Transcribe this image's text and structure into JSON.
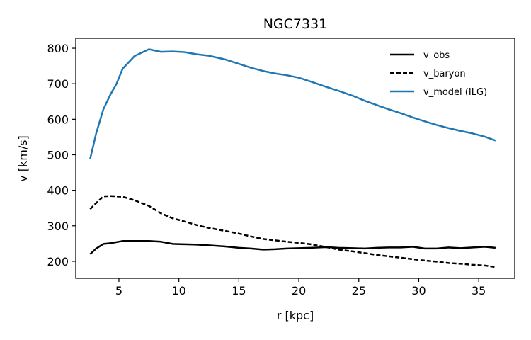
{
  "chart_data": {
    "type": "line",
    "title": "NGC7331",
    "xlabel": "r [kpc]",
    "ylabel": "v [km/s]",
    "xlim": [
      1.4,
      38.0
    ],
    "ylim": [
      152,
      828
    ],
    "xticks": [
      5,
      10,
      15,
      20,
      25,
      30,
      35
    ],
    "yticks": [
      200,
      300,
      400,
      500,
      600,
      700,
      800
    ],
    "grid": false,
    "legend_position": "top-right",
    "series": [
      {
        "name": "v_obs",
        "color": "#000000",
        "style": "solid",
        "points": [
          [
            2.6,
            220
          ],
          [
            3.1,
            236
          ],
          [
            3.7,
            249
          ],
          [
            4.3,
            251
          ],
          [
            5.3,
            257
          ],
          [
            6.3,
            257
          ],
          [
            7.5,
            257
          ],
          [
            8.5,
            255
          ],
          [
            9.5,
            249
          ],
          [
            10.5,
            248
          ],
          [
            11.5,
            247
          ],
          [
            12.5,
            245
          ],
          [
            13.8,
            242
          ],
          [
            15.0,
            238
          ],
          [
            16.0,
            236
          ],
          [
            17.0,
            233
          ],
          [
            18.0,
            234
          ],
          [
            19.0,
            236
          ],
          [
            20.0,
            237
          ],
          [
            21.0,
            238
          ],
          [
            22.3,
            240
          ],
          [
            23.3,
            238
          ],
          [
            24.5,
            237
          ],
          [
            25.5,
            236
          ],
          [
            26.5,
            238
          ],
          [
            27.5,
            239
          ],
          [
            28.5,
            239
          ],
          [
            29.5,
            241
          ],
          [
            30.5,
            236
          ],
          [
            31.5,
            236
          ],
          [
            32.5,
            239
          ],
          [
            33.5,
            237
          ],
          [
            34.5,
            239
          ],
          [
            35.5,
            241
          ],
          [
            36.4,
            238
          ]
        ]
      },
      {
        "name": "v_baryon",
        "color": "#000000",
        "style": "dashed",
        "points": [
          [
            2.6,
            347
          ],
          [
            3.1,
            364
          ],
          [
            3.7,
            383
          ],
          [
            4.3,
            384
          ],
          [
            5.3,
            382
          ],
          [
            6.3,
            372
          ],
          [
            7.5,
            356
          ],
          [
            8.5,
            335
          ],
          [
            9.5,
            321
          ],
          [
            10.5,
            312
          ],
          [
            11.5,
            302
          ],
          [
            12.5,
            294
          ],
          [
            13.8,
            286
          ],
          [
            15.0,
            278
          ],
          [
            16.0,
            270
          ],
          [
            17.0,
            263
          ],
          [
            18.0,
            259
          ],
          [
            19.0,
            255
          ],
          [
            20.0,
            252
          ],
          [
            21.0,
            248
          ],
          [
            22.3,
            240
          ],
          [
            23.3,
            233
          ],
          [
            24.5,
            228
          ],
          [
            25.5,
            223
          ],
          [
            26.5,
            218
          ],
          [
            27.5,
            214
          ],
          [
            28.5,
            210
          ],
          [
            29.5,
            206
          ],
          [
            30.5,
            202
          ],
          [
            31.5,
            199
          ],
          [
            32.5,
            195
          ],
          [
            33.5,
            193
          ],
          [
            34.5,
            190
          ],
          [
            35.5,
            188
          ],
          [
            36.4,
            184
          ]
        ]
      },
      {
        "name": "v_model (ILG)",
        "color": "#1f77b4",
        "style": "solid",
        "points": [
          [
            2.6,
            488
          ],
          [
            3.1,
            560
          ],
          [
            3.7,
            628
          ],
          [
            4.3,
            670
          ],
          [
            4.8,
            700
          ],
          [
            5.3,
            742
          ],
          [
            6.3,
            778
          ],
          [
            7.5,
            797
          ],
          [
            8.5,
            790
          ],
          [
            9.5,
            791
          ],
          [
            10.5,
            789
          ],
          [
            11.5,
            783
          ],
          [
            12.5,
            779
          ],
          [
            13.8,
            769
          ],
          [
            15.0,
            756
          ],
          [
            16.0,
            745
          ],
          [
            17.0,
            736
          ],
          [
            18.0,
            729
          ],
          [
            19.0,
            724
          ],
          [
            20.0,
            717
          ],
          [
            21.0,
            706
          ],
          [
            22.3,
            691
          ],
          [
            23.3,
            680
          ],
          [
            24.5,
            666
          ],
          [
            25.5,
            652
          ],
          [
            26.5,
            640
          ],
          [
            27.5,
            628
          ],
          [
            28.5,
            617
          ],
          [
            29.5,
            605
          ],
          [
            30.5,
            594
          ],
          [
            31.5,
            584
          ],
          [
            32.5,
            575
          ],
          [
            33.5,
            567
          ],
          [
            34.5,
            560
          ],
          [
            35.5,
            551
          ],
          [
            36.4,
            540
          ]
        ]
      }
    ]
  }
}
